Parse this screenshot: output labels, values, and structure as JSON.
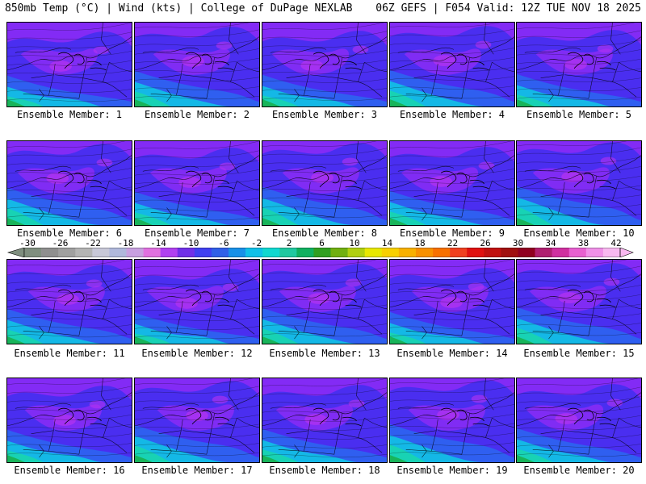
{
  "header": {
    "left_title": "850mb Temp (°C) | Wind (kts) | College of DuPage NEXLAB",
    "right_title": "06Z GEFS | F054 Valid: 12Z TUE NOV 18 2025"
  },
  "members": [
    {
      "label": "Ensemble Member: 1"
    },
    {
      "label": "Ensemble Member: 2"
    },
    {
      "label": "Ensemble Member: 3"
    },
    {
      "label": "Ensemble Member: 4"
    },
    {
      "label": "Ensemble Member: 5"
    },
    {
      "label": "Ensemble Member: 6"
    },
    {
      "label": "Ensemble Member: 7"
    },
    {
      "label": "Ensemble Member: 8"
    },
    {
      "label": "Ensemble Member: 9"
    },
    {
      "label": "Ensemble Member: 10"
    },
    {
      "label": "Ensemble Member: 11"
    },
    {
      "label": "Ensemble Member: 12"
    },
    {
      "label": "Ensemble Member: 13"
    },
    {
      "label": "Ensemble Member: 14"
    },
    {
      "label": "Ensemble Member: 15"
    },
    {
      "label": "Ensemble Member: 16"
    },
    {
      "label": "Ensemble Member: 17"
    },
    {
      "label": "Ensemble Member: 18"
    },
    {
      "label": "Ensemble Member: 19"
    },
    {
      "label": "Ensemble Member: 20"
    }
  ],
  "colorbar": {
    "tick_labels": [
      "-30",
      "-26",
      "-22",
      "-18",
      "-14",
      "-10",
      "-6",
      "-2",
      "2",
      "6",
      "10",
      "14",
      "18",
      "22",
      "26",
      "30",
      "34",
      "38",
      "42"
    ],
    "colors": [
      "#7f8f7f",
      "#8f8f8f",
      "#a0a0a0",
      "#b4b4b4",
      "#c8c8d8",
      "#b0b8dc",
      "#c8a0e0",
      "#e070e0",
      "#b040f0",
      "#7030e8",
      "#4040f0",
      "#3060e8",
      "#1890e8",
      "#10c0e8",
      "#10d8d0",
      "#20c8a0",
      "#10b060",
      "#30a020",
      "#70b010",
      "#b0d010",
      "#e8e800",
      "#f8d000",
      "#f8b000",
      "#f89000",
      "#f87000",
      "#f04020",
      "#e01010",
      "#c01010",
      "#a01010",
      "#900020",
      "#b02070",
      "#d030a0",
      "#e860d0",
      "#f090e8",
      "#f8b8f0"
    ]
  },
  "colors": {
    "purple_cold": "#8a2bf5",
    "magenta_cold": "#b533f0",
    "blue_mid": "#4a2ef0",
    "blue_light": "#2f5ff0",
    "cyan_warm": "#14b8e6",
    "teal_warm": "#18d2b4",
    "green_warm": "#18b45a",
    "border_line": "#000000"
  }
}
